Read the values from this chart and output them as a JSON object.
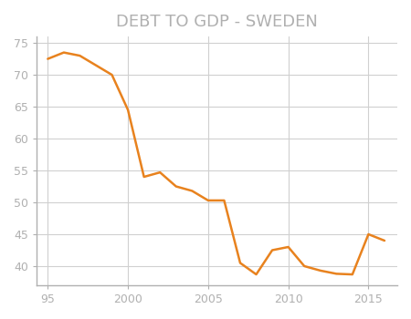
{
  "title": "DEBT TO GDP - SWEDEN",
  "title_color": "#b0b0b0",
  "title_fontsize": 13,
  "line_color": "#e8821e",
  "line_width": 1.8,
  "background_color": "#ffffff",
  "grid_color": "#d0d0d0",
  "tick_color": "#b0b0b0",
  "spine_color": "#b0b0b0",
  "years": [
    1995,
    1996,
    1997,
    1998,
    1999,
    2000,
    2001,
    2002,
    2003,
    2004,
    2005,
    2006,
    2007,
    2008,
    2009,
    2010,
    2011,
    2012,
    2013,
    2014,
    2015,
    2016
  ],
  "values": [
    72.5,
    73.5,
    73.0,
    71.5,
    70.0,
    64.5,
    54.0,
    54.7,
    52.5,
    51.8,
    50.3,
    50.3,
    40.5,
    38.7,
    42.5,
    43.0,
    40.0,
    39.3,
    38.8,
    38.7,
    45.0,
    44.0
  ],
  "xlim_low": 1994.3,
  "xlim_high": 2016.8,
  "ylim_low": 37,
  "ylim_high": 76,
  "xtick_positions": [
    1995,
    2000,
    2005,
    2010,
    2015
  ],
  "xtick_labels": [
    "95",
    "2000",
    "2005",
    "2010",
    "2015"
  ],
  "yticks": [
    40,
    45,
    50,
    55,
    60,
    65,
    70,
    75
  ],
  "figsize": [
    4.5,
    3.5
  ],
  "dpi": 100
}
